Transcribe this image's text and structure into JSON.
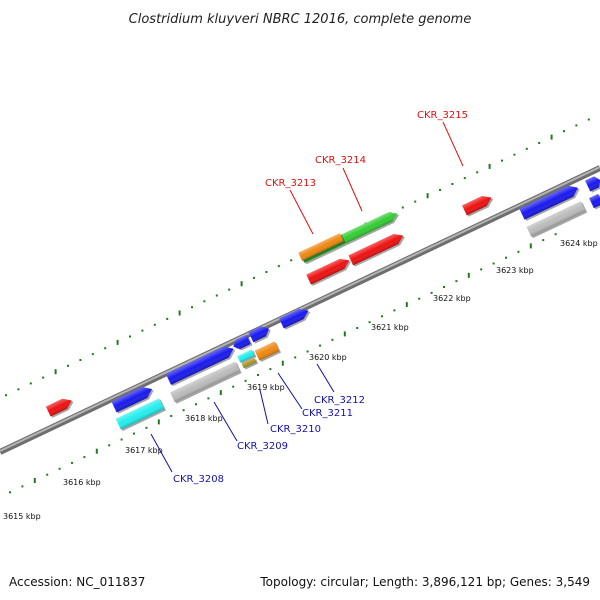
{
  "title": "Clostridium kluyveri NBRC 12016, complete genome",
  "footer": {
    "accession": "Accession: NC_011837",
    "summary": "Topology: circular; Length: 3,896,121 bp; Genes: 3,549"
  },
  "colors": {
    "backbone": "#8f8f8f",
    "tick": "#1f7a1f",
    "label_top": "#dd1111",
    "label_bottom": "#1111aa",
    "gene_red": "#ee1111",
    "gene_blue": "#1a1aee",
    "gene_green": "#33cc33",
    "gene_orange": "#ee8811",
    "gene_cyan": "#22eeee",
    "gene_gray": "#bbbbbb"
  },
  "kbp_labels": [
    "3615 kbp",
    "3616 kbp",
    "3617 kbp",
    "3618 kbp",
    "3619 kbp",
    "3620 kbp",
    "3621 kbp",
    "3622 kbp",
    "3623 kbp",
    "3624 kbp"
  ],
  "gene_labels_top": [
    "CKR_3213",
    "CKR_3214",
    "CKR_3215"
  ],
  "gene_labels_bottom": [
    "CKR_3208",
    "CKR_3209",
    "CKR_3210",
    "CKR_3211",
    "CKR_3212"
  ]
}
